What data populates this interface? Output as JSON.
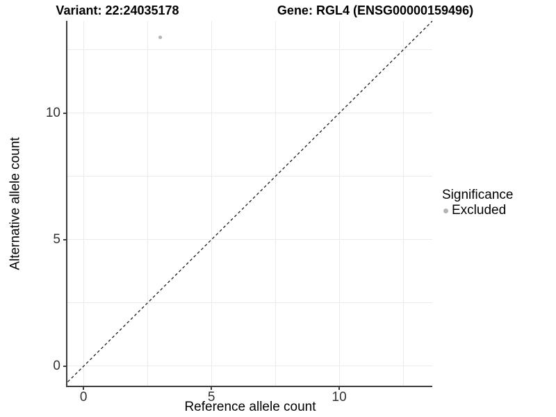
{
  "chart_data": {
    "type": "scatter",
    "titles": {
      "variant": "Variant: 22:24035178",
      "gene": "Gene: RGL4 (ENSG00000159496)"
    },
    "xlabel": "Reference allele count",
    "ylabel": "Alternative allele count",
    "x_ticks": [
      0,
      5,
      10
    ],
    "y_ticks": [
      0,
      5,
      10
    ],
    "x_minor_ticks": [
      2.5,
      7.5,
      12.5
    ],
    "y_minor_ticks": [
      2.5,
      7.5,
      12.5
    ],
    "xlim": [
      -0.63,
      13.64
    ],
    "ylim": [
      -0.77,
      13.65
    ],
    "grid": true,
    "identity_line": {
      "type": "abline",
      "slope": 1,
      "intercept": 0,
      "linetype": "dashed",
      "color": "#1a1a1a"
    },
    "points": [
      {
        "x": 3,
        "y": 13,
        "significance": "Excluded",
        "color": "#b5b5b5"
      }
    ],
    "legend": {
      "title": "Significance",
      "position": "right",
      "items": [
        {
          "label": "Excluded",
          "color": "#b3b3b3",
          "marker": "circle"
        }
      ]
    },
    "colors": {
      "grid": "#ebebeb",
      "axis_line": "#3c3c3c",
      "tick_label": "#303030"
    }
  }
}
